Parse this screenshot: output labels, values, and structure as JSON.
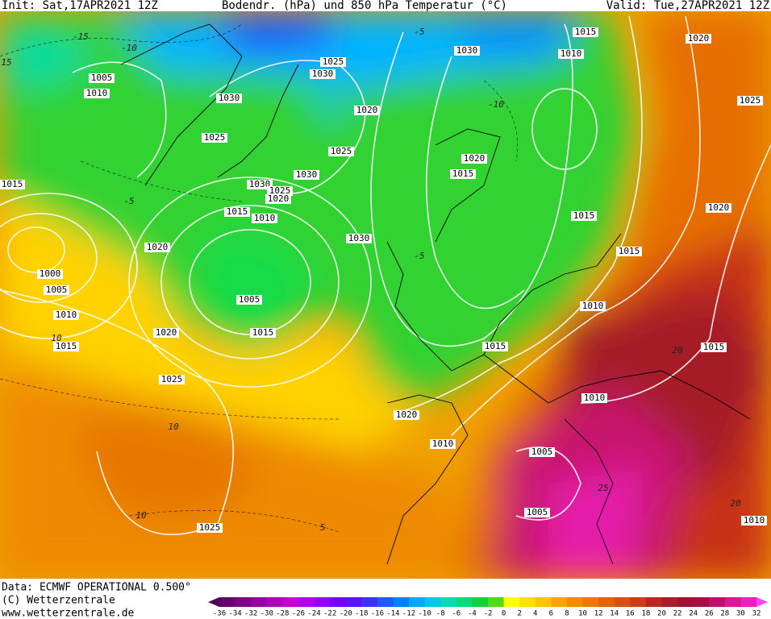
{
  "header": {
    "init": "Init: Sat,17APR2021 12Z",
    "title": "Bodendr. (hPa) und 850 hPa Temperatur (°C)",
    "valid": "Valid: Tue,27APR2021 12Z"
  },
  "map": {
    "isobar_labels": [
      "1005",
      "1010",
      "1015",
      "1030",
      "1025",
      "1025",
      "1030",
      "1020",
      "1025",
      "1030",
      "1030",
      "1025",
      "1020",
      "1015",
      "1010",
      "1030",
      "1030",
      "1015",
      "1010",
      "1020",
      "1025",
      "1015",
      "1020",
      "1015",
      "1020",
      "1015",
      "1020",
      "1000",
      "1005",
      "1010",
      "1005",
      "1015",
      "1020",
      "1015",
      "1025",
      "1010",
      "1015",
      "1015",
      "1010",
      "1020",
      "1010",
      "1005",
      "1005",
      "1025",
      "1010"
    ],
    "temperature_labels": [
      "-15",
      "15",
      "-10",
      "-5",
      "-10",
      "-5",
      "10",
      "-5",
      "10",
      "25",
      "20",
      "10",
      "5",
      "20"
    ]
  },
  "footer": {
    "data": "Data: ECMWF OPERATIONAL 0.500°",
    "copyright": "(C) Wetterzentrale",
    "url": "www.wetterzentrale.de"
  },
  "scale": {
    "ticks": [
      -36,
      -34,
      -32,
      -30,
      -28,
      -26,
      -24,
      -22,
      -20,
      -18,
      -16,
      -14,
      -12,
      -10,
      -8,
      -6,
      -4,
      -2,
      0,
      2,
      4,
      6,
      8,
      10,
      12,
      14,
      16,
      18,
      20,
      22,
      24,
      26,
      28,
      30,
      32
    ],
    "colors": [
      "#500050",
      "#64006e",
      "#7d0087",
      "#9600a0",
      "#af00b9",
      "#c800d2",
      "#b400f0",
      "#9600ff",
      "#7800ff",
      "#5a14ff",
      "#3c32ff",
      "#1e5aff",
      "#0082ff",
      "#00aaff",
      "#00c8e6",
      "#00dcb4",
      "#00dc78",
      "#14d23c",
      "#50dc14",
      "#ffff00",
      "#ffe100",
      "#ffc300",
      "#ffa500",
      "#f58c00",
      "#eb7800",
      "#e16400",
      "#d75014",
      "#cd3c14",
      "#b9281e",
      "#a51e28",
      "#9b1432",
      "#a50f46",
      "#be0f6e",
      "#dc1496",
      "#f01ebe",
      "#ff46f0"
    ]
  }
}
